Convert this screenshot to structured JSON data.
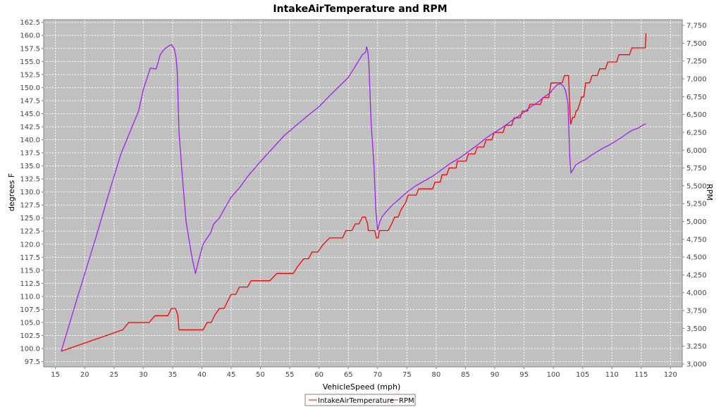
{
  "chart_data": {
    "type": "line",
    "title": "IntakeAirTemperature and RPM",
    "xlabel": "VehicleSpeed (mph)",
    "ylabel": "degrees F",
    "y2label": "RPM",
    "xlim": [
      13,
      122
    ],
    "ylim": [
      96.5,
      163
    ],
    "y2lim": [
      2960,
      7830
    ],
    "xticks": [
      15,
      20,
      25,
      30,
      35,
      40,
      45,
      50,
      55,
      60,
      65,
      70,
      75,
      80,
      85,
      90,
      95,
      100,
      105,
      110,
      115,
      120
    ],
    "yticks": [
      "97.5",
      "100.0",
      "102.5",
      "105.0",
      "107.5",
      "110.0",
      "112.5",
      "115.0",
      "117.5",
      "120.0",
      "122.5",
      "125.0",
      "127.5",
      "130.0",
      "132.5",
      "135.0",
      "137.5",
      "140.0",
      "142.5",
      "145.0",
      "147.5",
      "150.0",
      "152.5",
      "155.0",
      "157.5",
      "160.0",
      "162.5"
    ],
    "y2ticks": [
      "3,000",
      "3,250",
      "3,500",
      "3,750",
      "4,000",
      "4,250",
      "4,500",
      "4,750",
      "5,000",
      "5,250",
      "5,500",
      "5,750",
      "6,000",
      "6,250",
      "6,500",
      "6,750",
      "7,000",
      "7,250",
      "7,500",
      "7,750"
    ],
    "grid": true,
    "legend_position": "bottom",
    "background_color": "#c0c0c0",
    "grid_color": "#ffffff",
    "series": [
      {
        "name": "IntakeAirTemperature",
        "axis": "left",
        "color": "#ff0000",
        "points": [
          [
            16,
            99.5
          ],
          [
            26,
            103.4
          ],
          [
            26.5,
            103.6
          ],
          [
            27.5,
            105.0
          ],
          [
            31,
            105.0
          ],
          [
            32,
            106.3
          ],
          [
            34.2,
            106.3
          ],
          [
            34.8,
            107.7
          ],
          [
            35.5,
            107.7
          ],
          [
            35.9,
            106.4
          ],
          [
            36.1,
            103.6
          ],
          [
            40.2,
            103.6
          ],
          [
            40.9,
            105.0
          ],
          [
            41.6,
            105.0
          ],
          [
            42.2,
            106.4
          ],
          [
            43,
            107.7
          ],
          [
            43.8,
            107.7
          ],
          [
            44.4,
            109.1
          ],
          [
            45,
            110.4
          ],
          [
            45.8,
            110.4
          ],
          [
            46.4,
            111.8
          ],
          [
            47.8,
            111.8
          ],
          [
            48.4,
            113.0
          ],
          [
            50.8,
            113.0
          ],
          [
            51.6,
            113.0
          ],
          [
            52.8,
            114.4
          ],
          [
            55.6,
            114.4
          ],
          [
            56.4,
            115.8
          ],
          [
            57.4,
            117.2
          ],
          [
            58.2,
            117.2
          ],
          [
            58.8,
            118.5
          ],
          [
            59.8,
            118.5
          ],
          [
            60.6,
            119.8
          ],
          [
            61.8,
            121.2
          ],
          [
            64,
            121.2
          ],
          [
            64.6,
            122.6
          ],
          [
            65.6,
            122.6
          ],
          [
            66.2,
            123.9
          ],
          [
            66.8,
            123.9
          ],
          [
            67.4,
            125.2
          ],
          [
            67.9,
            125.2
          ],
          [
            68.3,
            123.9
          ],
          [
            68.4,
            122.6
          ],
          [
            69.5,
            122.6
          ],
          [
            69.8,
            121.2
          ],
          [
            70.1,
            121.2
          ],
          [
            70.3,
            122.6
          ],
          [
            71.8,
            122.6
          ],
          [
            72.4,
            123.9
          ],
          [
            72.9,
            125.2
          ],
          [
            73.5,
            125.2
          ],
          [
            74,
            126.6
          ],
          [
            74.8,
            128.0
          ],
          [
            75.2,
            129.4
          ],
          [
            76.6,
            129.4
          ],
          [
            77,
            130.6
          ],
          [
            79.4,
            130.6
          ],
          [
            79.8,
            131.9
          ],
          [
            80.7,
            131.9
          ],
          [
            81,
            133.3
          ],
          [
            81.8,
            133.3
          ],
          [
            82.2,
            134.6
          ],
          [
            83.4,
            134.6
          ],
          [
            83.6,
            135.9
          ],
          [
            85.1,
            135.9
          ],
          [
            85.5,
            137.3
          ],
          [
            86.6,
            137.3
          ],
          [
            87,
            138.6
          ],
          [
            88.1,
            138.6
          ],
          [
            88.5,
            140.0
          ],
          [
            89.5,
            140.0
          ],
          [
            89.9,
            141.4
          ],
          [
            91.4,
            141.4
          ],
          [
            91.8,
            142.8
          ],
          [
            92.9,
            142.8
          ],
          [
            93.3,
            144.2
          ],
          [
            94.3,
            144.2
          ],
          [
            94.7,
            145.5
          ],
          [
            95.6,
            145.5
          ],
          [
            96,
            146.8
          ],
          [
            97.8,
            146.8
          ],
          [
            98.2,
            148.1
          ],
          [
            99.2,
            148.1
          ],
          [
            99.6,
            150.9
          ],
          [
            101.5,
            150.9
          ],
          [
            101.9,
            152.3
          ],
          [
            102.6,
            152.3
          ],
          [
            102.8,
            146.0
          ],
          [
            102.95,
            143.0
          ],
          [
            103.3,
            144.3
          ],
          [
            103.6,
            144.3
          ],
          [
            103.9,
            145.6
          ],
          [
            104.1,
            145.6
          ],
          [
            104.5,
            146.9
          ],
          [
            104.8,
            148.2
          ],
          [
            105.2,
            148.2
          ],
          [
            105.5,
            150.9
          ],
          [
            106.2,
            150.9
          ],
          [
            106.6,
            152.3
          ],
          [
            107.5,
            152.3
          ],
          [
            107.9,
            153.6
          ],
          [
            108.9,
            153.6
          ],
          [
            109.3,
            154.9
          ],
          [
            110.8,
            154.9
          ],
          [
            111.2,
            156.3
          ],
          [
            113,
            156.3
          ],
          [
            113.4,
            157.6
          ],
          [
            115.7,
            157.6
          ],
          [
            115.8,
            160.4
          ]
        ]
      },
      {
        "name": "RPM",
        "axis": "right",
        "color": "#a020f0",
        "points": [
          [
            16,
            3180
          ],
          [
            19,
            4000
          ],
          [
            22,
            4800
          ],
          [
            24.5,
            5500
          ],
          [
            26.2,
            5950
          ],
          [
            28.2,
            6350
          ],
          [
            29.2,
            6550
          ],
          [
            30,
            6850
          ],
          [
            31.2,
            7150
          ],
          [
            32.2,
            7140
          ],
          [
            32.9,
            7340
          ],
          [
            33.5,
            7410
          ],
          [
            34.3,
            7460
          ],
          [
            34.8,
            7480
          ],
          [
            35.3,
            7420
          ],
          [
            35.6,
            7300
          ],
          [
            35.8,
            7100
          ],
          [
            36.1,
            6250
          ],
          [
            36.6,
            5700
          ],
          [
            37.3,
            5000
          ],
          [
            38.3,
            4500
          ],
          [
            38.9,
            4270
          ],
          [
            39.5,
            4470
          ],
          [
            40.2,
            4680
          ],
          [
            41,
            4780
          ],
          [
            41.5,
            4840
          ],
          [
            42,
            4960
          ],
          [
            43,
            5050
          ],
          [
            44,
            5200
          ],
          [
            45,
            5340
          ],
          [
            46.5,
            5480
          ],
          [
            48,
            5650
          ],
          [
            50,
            5840
          ],
          [
            52,
            6020
          ],
          [
            54,
            6200
          ],
          [
            56,
            6340
          ],
          [
            58,
            6480
          ],
          [
            60,
            6610
          ],
          [
            62,
            6780
          ],
          [
            63.5,
            6900
          ],
          [
            65,
            7020
          ],
          [
            66,
            7150
          ],
          [
            66.8,
            7260
          ],
          [
            67.4,
            7340
          ],
          [
            68,
            7380
          ],
          [
            68.1,
            7450
          ],
          [
            68.3,
            7410
          ],
          [
            68.5,
            7230
          ],
          [
            68.9,
            6380
          ],
          [
            69.4,
            5750
          ],
          [
            69.7,
            5150
          ],
          [
            70,
            4880
          ],
          [
            70.4,
            5000
          ],
          [
            70.8,
            5070
          ],
          [
            71.5,
            5140
          ],
          [
            72.5,
            5230
          ],
          [
            73.5,
            5300
          ],
          [
            75,
            5410
          ],
          [
            76.5,
            5500
          ],
          [
            78,
            5570
          ],
          [
            79.5,
            5640
          ],
          [
            81,
            5730
          ],
          [
            82.5,
            5820
          ],
          [
            84,
            5890
          ],
          [
            85.5,
            5980
          ],
          [
            87,
            6070
          ],
          [
            88.5,
            6170
          ],
          [
            90,
            6250
          ],
          [
            91.5,
            6330
          ],
          [
            93,
            6420
          ],
          [
            94.5,
            6500
          ],
          [
            96,
            6600
          ],
          [
            97.5,
            6680
          ],
          [
            98.5,
            6750
          ],
          [
            99.5,
            6810
          ],
          [
            100.2,
            6880
          ],
          [
            100.7,
            6920
          ],
          [
            101.2,
            6930
          ],
          [
            101.7,
            6900
          ],
          [
            102.1,
            6830
          ],
          [
            102.5,
            6650
          ],
          [
            102.8,
            5900
          ],
          [
            103,
            5680
          ],
          [
            103.3,
            5720
          ],
          [
            103.8,
            5790
          ],
          [
            104.5,
            5830
          ],
          [
            105.5,
            5870
          ],
          [
            106.5,
            5930
          ],
          [
            107.5,
            5980
          ],
          [
            108.5,
            6030
          ],
          [
            109.5,
            6070
          ],
          [
            110.5,
            6120
          ],
          [
            111.5,
            6170
          ],
          [
            112.5,
            6230
          ],
          [
            113.5,
            6280
          ],
          [
            114.5,
            6310
          ],
          [
            115.2,
            6350
          ],
          [
            115.8,
            6370
          ]
        ]
      }
    ]
  }
}
